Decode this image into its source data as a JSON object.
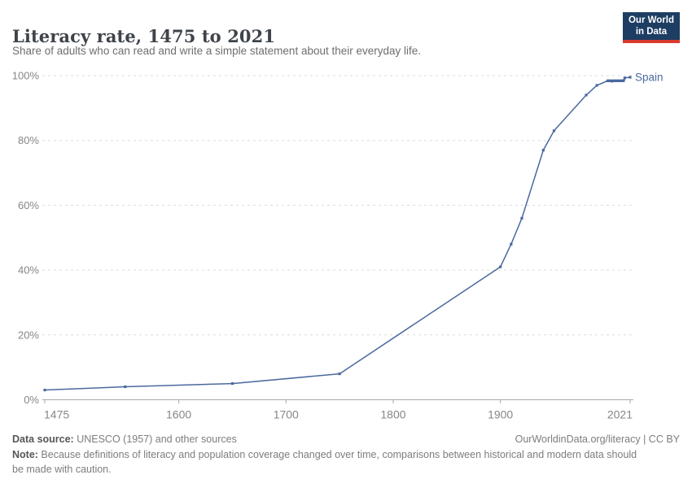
{
  "header": {
    "title": "Literacy rate, 1475 to 2021",
    "subtitle": "Share of adults who can read and write a simple statement about their everyday life.",
    "logo": {
      "line1": "Our World",
      "line2": "in Data"
    }
  },
  "chart_data": {
    "type": "line",
    "title": "Literacy rate, 1475 to 2021",
    "xlabel": "",
    "ylabel": "",
    "xlim": [
      1475,
      2021
    ],
    "ylim": [
      0,
      100
    ],
    "grid": "horizontal-dashed",
    "legend_position": "end-of-line-label",
    "x_ticks": [
      1475,
      1600,
      1700,
      1800,
      1900,
      2021
    ],
    "y_ticks": [
      0,
      20,
      40,
      60,
      80,
      100
    ],
    "y_tick_suffix": "%",
    "series": [
      {
        "name": "Spain",
        "color": "#4b699e",
        "points": [
          [
            1475,
            3
          ],
          [
            1550,
            4
          ],
          [
            1650,
            5
          ],
          [
            1750,
            8
          ],
          [
            1900,
            41
          ],
          [
            1910,
            48
          ],
          [
            1920,
            56
          ],
          [
            1940,
            77
          ],
          [
            1950,
            83
          ],
          [
            1980,
            94
          ],
          [
            1990,
            97
          ],
          [
            2000,
            98.4
          ],
          [
            2001,
            98.4
          ],
          [
            2002,
            98.4
          ],
          [
            2003,
            98.4
          ],
          [
            2004,
            98.3
          ],
          [
            2005,
            98.4
          ],
          [
            2006,
            98.4
          ],
          [
            2007,
            98.4
          ],
          [
            2008,
            98.4
          ],
          [
            2009,
            98.4
          ],
          [
            2010,
            98.4
          ],
          [
            2011,
            98.4
          ],
          [
            2012,
            98.4
          ],
          [
            2013,
            98.4
          ],
          [
            2014,
            98.4
          ],
          [
            2015,
            98.5
          ],
          [
            2016,
            99.3
          ],
          [
            2021,
            99.5
          ]
        ]
      }
    ]
  },
  "footer": {
    "datasource_label": "Data source:",
    "datasource_text": " UNESCO (1957) and other sources",
    "note_label": "Note:",
    "note_text": " Because definitions of literacy and population coverage changed over time, comparisons between historical and modern data should be made with caution.",
    "link": "OurWorldinData.org/literacy | CC BY"
  },
  "colors": {
    "accent_line": "#4b699e",
    "logo_bg": "#1d3d63",
    "logo_bar": "#d93a2d",
    "grid": "#dcdcdc",
    "axis": "#a9a9a9",
    "tick_label": "#878787"
  }
}
